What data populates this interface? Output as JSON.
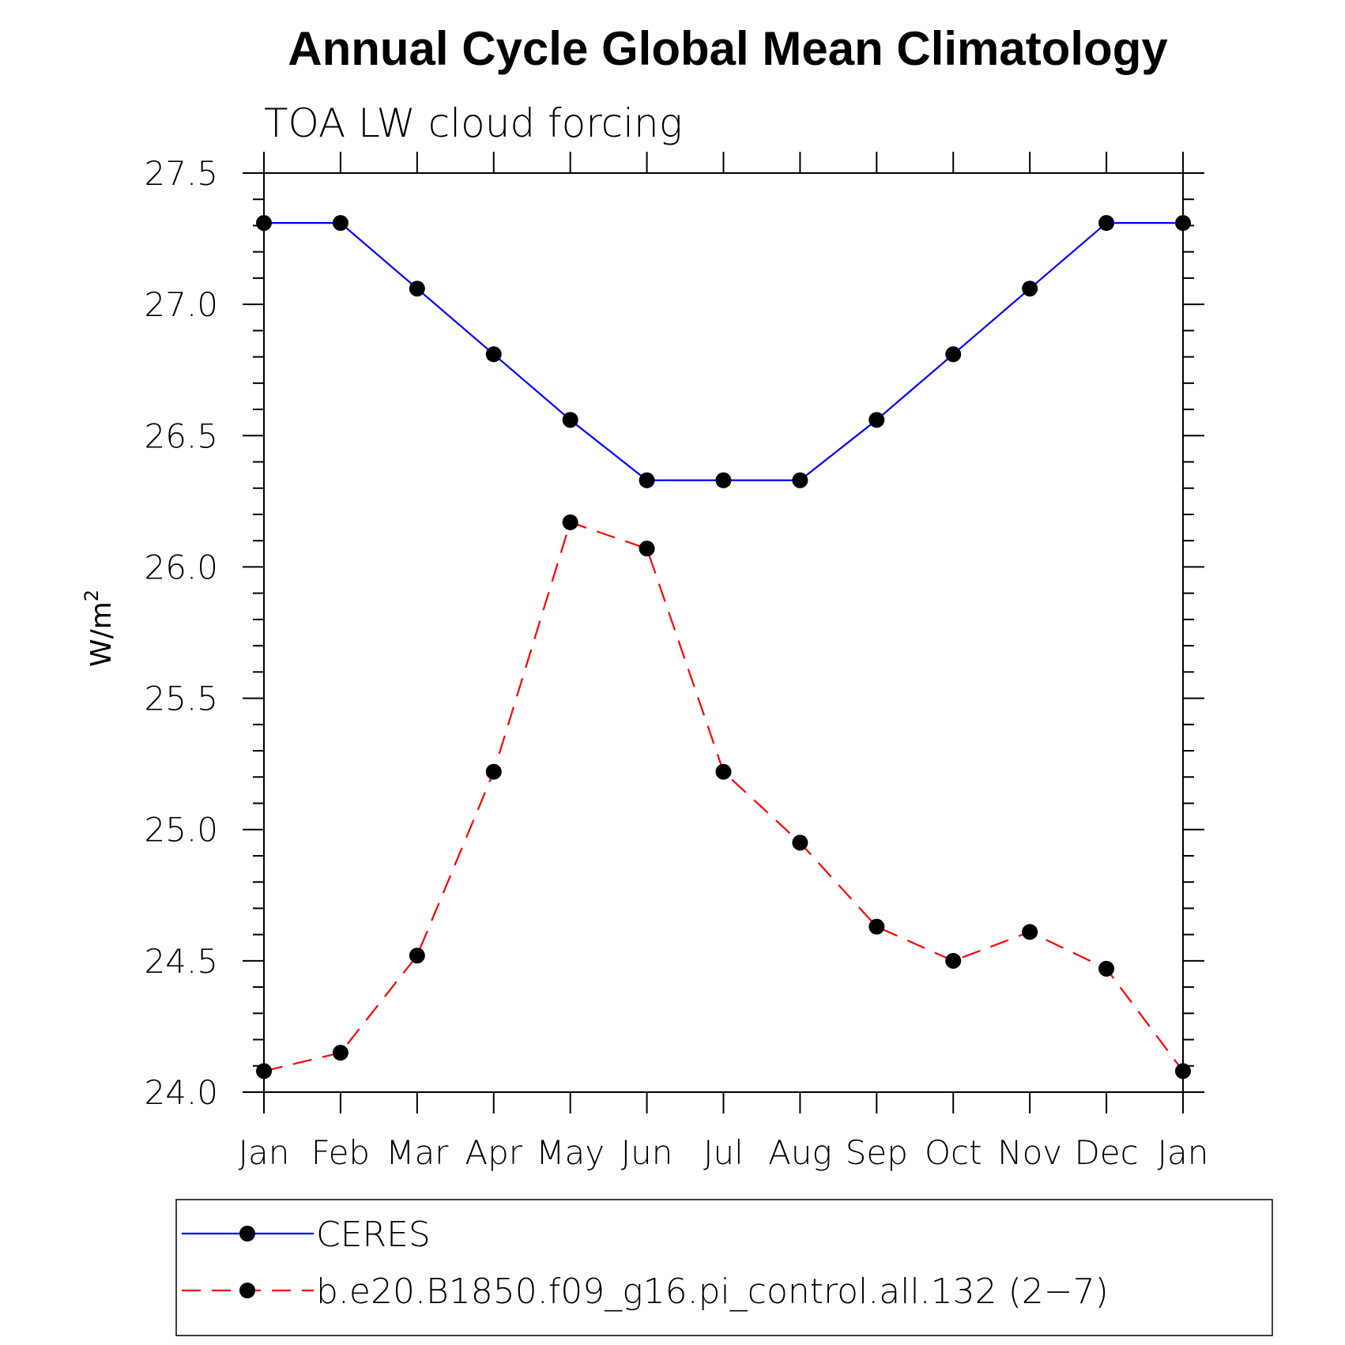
{
  "chart_data": {
    "type": "line",
    "title": "Annual Cycle Global Mean Climatology",
    "subtitle": "TOA LW cloud forcing",
    "ylabel_base": "W/m",
    "ylabel_sup": "2",
    "categories": [
      "Jan",
      "Feb",
      "Mar",
      "Apr",
      "May",
      "Jun",
      "Jul",
      "Aug",
      "Sep",
      "Oct",
      "Nov",
      "Dec",
      "Jan"
    ],
    "ylim": [
      24.0,
      27.5
    ],
    "yticks": [
      24.0,
      24.5,
      25.0,
      25.5,
      26.0,
      26.5,
      27.0,
      27.5
    ],
    "ytick_labels": [
      "24.0",
      "24.5",
      "25.0",
      "25.5",
      "26.0",
      "26.5",
      "27.0",
      "27.5"
    ],
    "grid": false,
    "legend_position": "bottom",
    "series": [
      {
        "name": "CERES",
        "color": "#0000ff",
        "dash": "solid",
        "marker": "filled-circle",
        "values": [
          27.31,
          27.31,
          27.06,
          26.81,
          26.56,
          26.33,
          26.33,
          26.33,
          26.56,
          26.81,
          27.06,
          27.31,
          27.31
        ]
      },
      {
        "name": "b.e20.B1850.f09_g16.pi_control.all.132 (2−7)",
        "color": "#ff0000",
        "dash": "dashed",
        "marker": "filled-circle",
        "values": [
          24.08,
          24.15,
          24.52,
          25.22,
          26.17,
          26.07,
          25.22,
          24.95,
          24.63,
          24.5,
          24.61,
          24.47,
          24.08
        ]
      }
    ]
  }
}
